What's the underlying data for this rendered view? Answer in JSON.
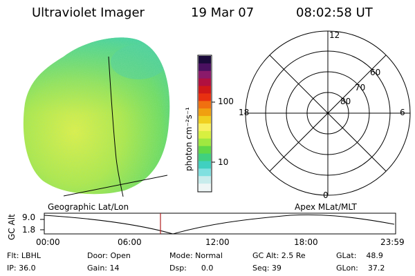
{
  "header": {
    "instrument": "Ultraviolet Imager",
    "date": "19 Mar 07",
    "time": "08:02:58 UT"
  },
  "colorbar": {
    "unit_label": "photon cm⁻²s⁻¹",
    "tick_labels": [
      "100",
      "10"
    ],
    "colors": [
      "#1a0a3a",
      "#4a1060",
      "#8a1a6a",
      "#b01040",
      "#d01818",
      "#e83010",
      "#f07010",
      "#f0a010",
      "#f0d020",
      "#f8f060",
      "#d8f040",
      "#a0e840",
      "#60d848",
      "#40d080",
      "#40d0c0",
      "#80e0e0",
      "#c8ecec",
      "#eef6f6"
    ]
  },
  "image_panel": {
    "label": "Geographic Lat/Lon"
  },
  "polar_panel": {
    "label": "Apex  MLat/MLT",
    "mlt_labels": {
      "top": "12",
      "left": "18",
      "right": "6",
      "bottom": "0"
    },
    "lat_labels": [
      "60",
      "70",
      "80"
    ]
  },
  "altitude_plot": {
    "ylabel": "GC Alt",
    "y_ticks": [
      "9.0",
      "1.8"
    ],
    "x_ticks": [
      "00:00",
      "06:00",
      "12:00",
      "18:00",
      "23:59"
    ],
    "marker_color": "#b02020"
  },
  "info": {
    "flt": "Flt: LBHL",
    "ip": "IP: 36.0",
    "door": "Door: Open",
    "gain": "Gain: 14",
    "mode": "Mode: Normal",
    "dsp": "Dsp:      0.0",
    "gc_alt": "GC Alt: 2.5 Re",
    "seq": "Seq: 39",
    "glat": "GLat:    48.9",
    "glon": "GLon:    37.2"
  }
}
